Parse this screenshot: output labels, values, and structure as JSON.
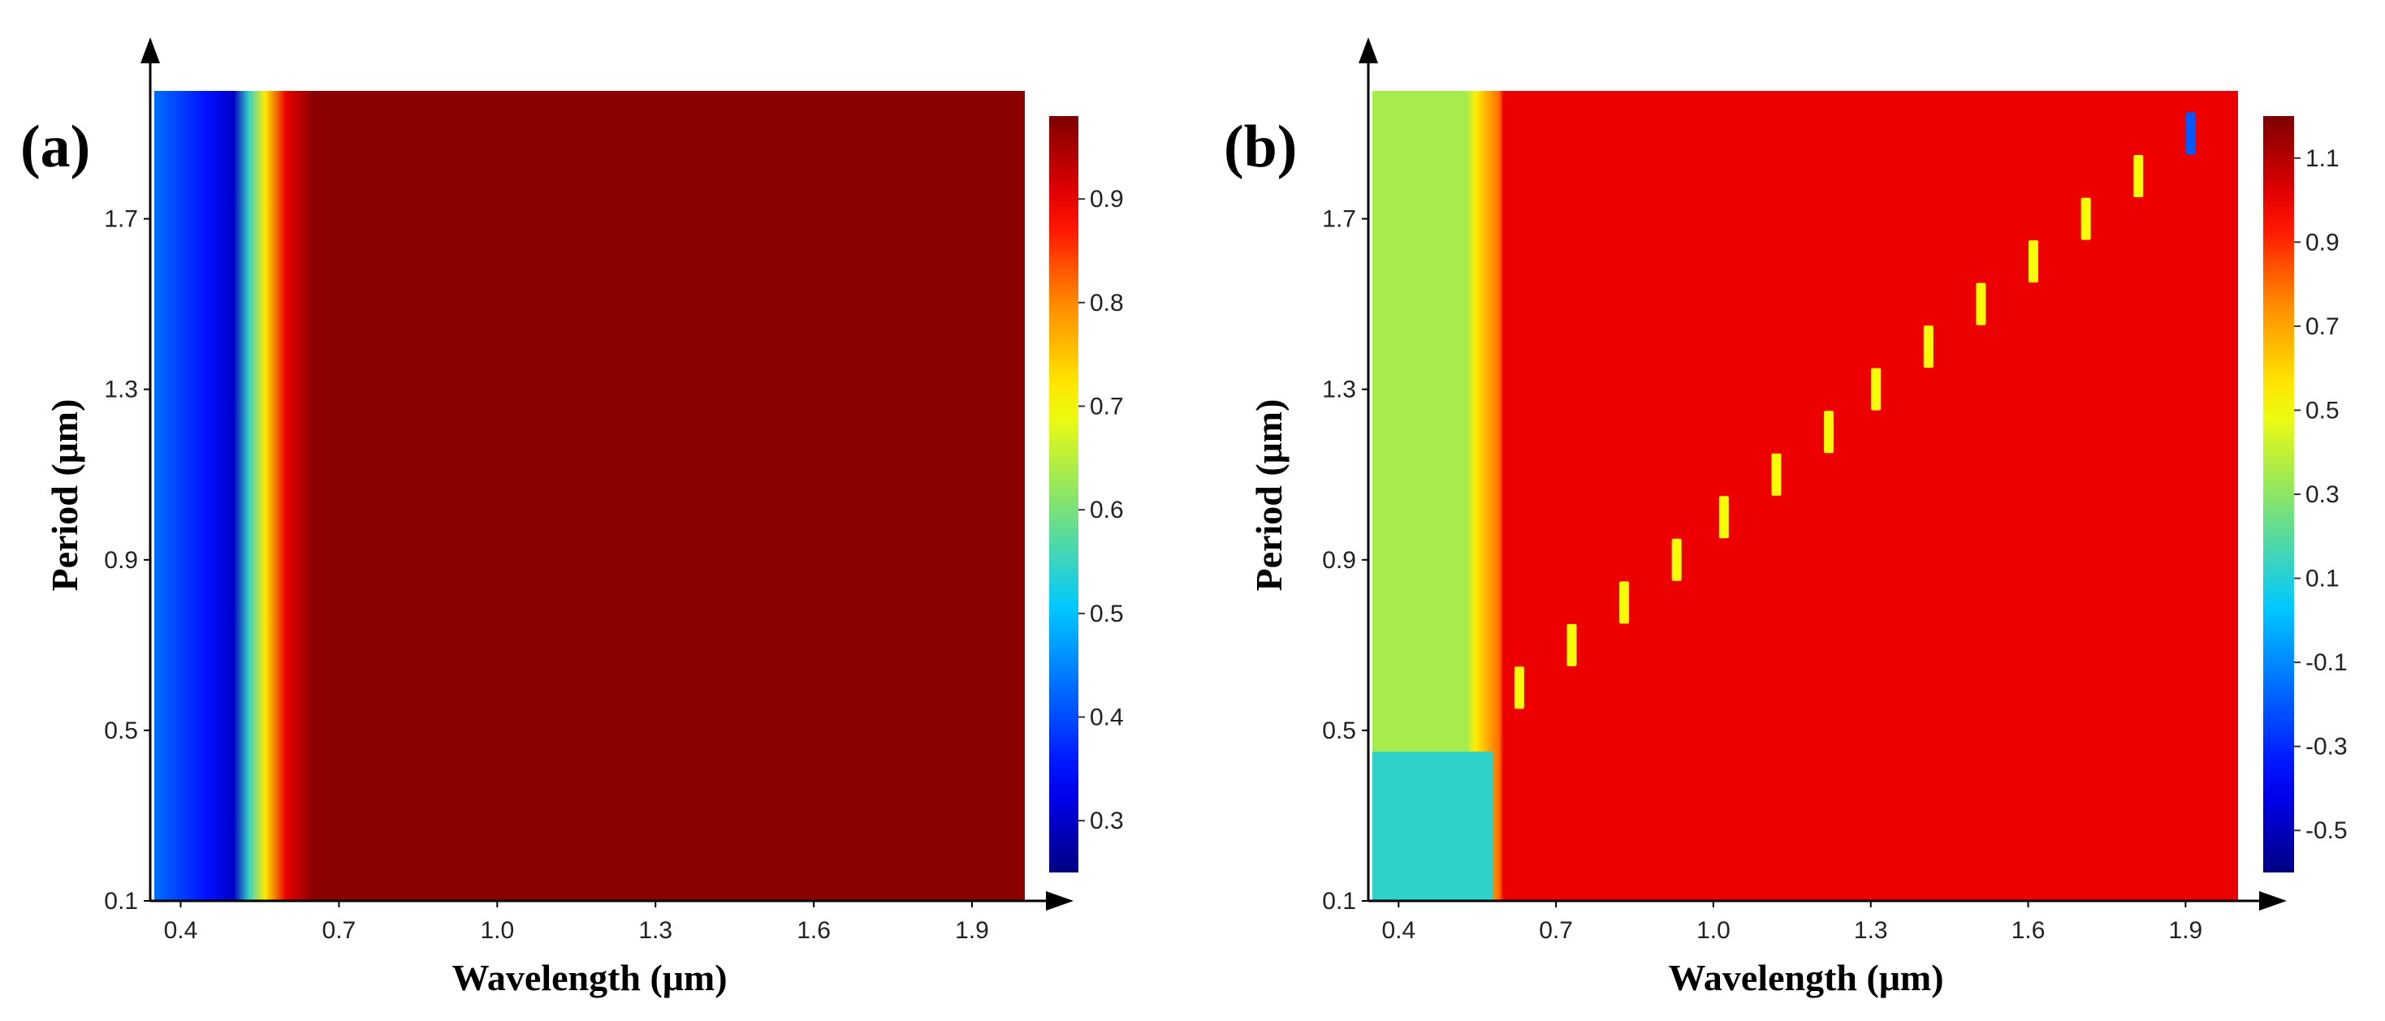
{
  "chart_data": [
    {
      "type": "heatmap",
      "panel_label": "(a)",
      "xlabel": "Wavelength (μm)",
      "ylabel": "Period  (μm)",
      "xlim": [
        0.35,
        2.0
      ],
      "ylim": [
        0.1,
        2.0
      ],
      "xticks": [
        "0.4",
        "0.7",
        "1.0",
        "1.3",
        "1.6",
        "1.9"
      ],
      "yticks": [
        "0.1",
        "0.5",
        "0.9",
        "1.3",
        "1.7"
      ],
      "colorbar": {
        "range": [
          0.25,
          0.98
        ],
        "ticks": [
          "0.3",
          "0.4",
          "0.5",
          "0.6",
          "0.7",
          "0.8",
          "0.9"
        ]
      },
      "profile_wavelength": [
        0.35,
        0.45,
        0.5,
        0.53,
        0.56,
        0.6,
        0.65,
        2.0
      ],
      "profile_value": [
        0.43,
        0.35,
        0.3,
        0.55,
        0.72,
        0.9,
        0.97,
        0.97
      ],
      "description": "Value depends almost only on wavelength: ~0.3–0.45 below 0.52 μm, steep rise near 0.55 μm, ~0.97 plateau beyond 0.65 μm for all periods."
    },
    {
      "type": "heatmap",
      "panel_label": "(b)",
      "xlabel": "Wavelength (μm)",
      "ylabel": "Period  (μm)",
      "xlim": [
        0.35,
        2.0
      ],
      "ylim": [
        0.1,
        2.0
      ],
      "xticks": [
        "0.4",
        "0.7",
        "1.0",
        "1.3",
        "1.6",
        "1.9"
      ],
      "yticks": [
        "0.1",
        "0.5",
        "0.9",
        "1.3",
        "1.7"
      ],
      "colorbar": {
        "range": [
          -0.6,
          1.2
        ],
        "ticks": [
          "-0.5",
          "-0.3",
          "-0.1",
          "0.1",
          "0.3",
          "0.5",
          "0.7",
          "0.9",
          "1.1"
        ]
      },
      "regions": [
        {
          "name": "low-wavelength band",
          "wavelength": [
            0.35,
            0.53
          ],
          "value": 0.35
        },
        {
          "name": "small-period pocket",
          "wavelength": [
            0.35,
            0.58
          ],
          "period": [
            0.1,
            0.45
          ],
          "value": 0.12
        },
        {
          "name": "plateau",
          "wavelength": [
            0.6,
            2.0
          ],
          "value": 1.0
        }
      ],
      "resonance_line": {
        "slope": 1.0,
        "points": [
          [
            0.63,
            0.6
          ],
          [
            0.73,
            0.7
          ],
          [
            0.83,
            0.8
          ],
          [
            0.93,
            0.9
          ],
          [
            1.02,
            1.0
          ],
          [
            1.12,
            1.1
          ],
          [
            1.22,
            1.2
          ],
          [
            1.31,
            1.3
          ],
          [
            1.41,
            1.4
          ],
          [
            1.51,
            1.5
          ],
          [
            1.61,
            1.6
          ],
          [
            1.71,
            1.7
          ],
          [
            1.81,
            1.8
          ],
          [
            1.91,
            1.9
          ]
        ],
        "value": 0.5,
        "outlier_value": -0.2
      }
    }
  ]
}
